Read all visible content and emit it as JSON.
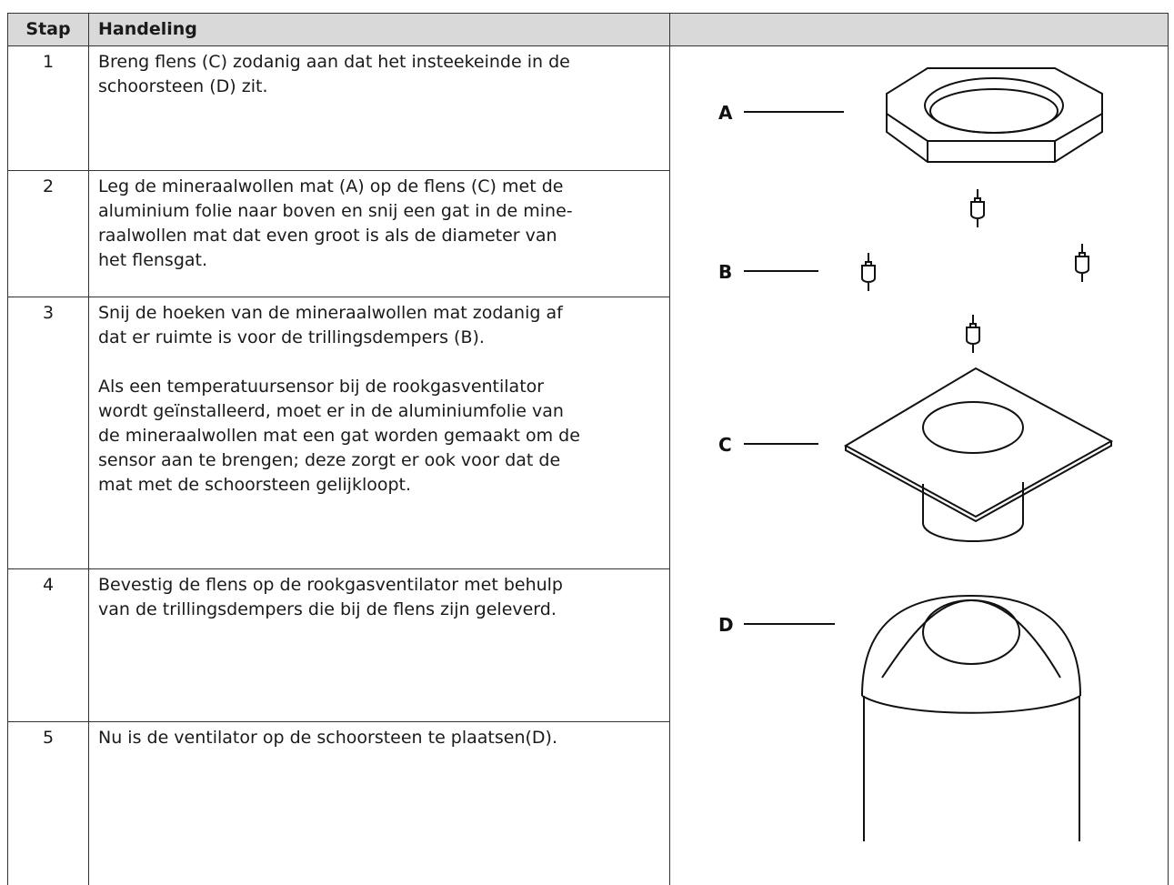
{
  "table": {
    "header": [
      "Stap",
      "Handeling"
    ],
    "rows": [
      {
        "step": "1",
        "lines": [
          "Breng flens (C) zodanig aan dat het insteekeinde in de",
          "schoorsteen (D) zit."
        ]
      },
      {
        "step": "2",
        "lines": [
          "Leg de mineraalwollen mat (A) op de flens (C) met de",
          "aluminium folie naar boven en snij een gat in de mine-",
          "raalwollen mat dat even groot is als de diameter van",
          "het flensgat."
        ]
      },
      {
        "step": "3",
        "lines": [
          "Snij de hoeken van de mineraalwollen mat zodanig af",
          "dat er ruimte is voor de trillingsdempers (B)."
        ],
        "note": [
          "Als een temperatuursensor bij de rookgasventilator",
          "wordt geïnstalleerd, moet er in de aluminiumfolie van",
          "de mineraalwollen mat een gat worden gemaakt om de",
          "sensor aan te brengen; deze zorgt er ook voor dat de",
          "mat met de schoorsteen gelijkloopt."
        ]
      },
      {
        "step": "4",
        "lines": [
          "Bevestig de flens op de rookgasventilator met behulp",
          "van de trillingsdempers die bij de flens zijn geleverd."
        ]
      },
      {
        "step": "5",
        "lines": [
          "Nu is de ventilator op de schoorsteen te plaatsen(D)."
        ]
      }
    ]
  },
  "diagram": {
    "labels": [
      "A",
      "B",
      "C",
      "D"
    ]
  }
}
